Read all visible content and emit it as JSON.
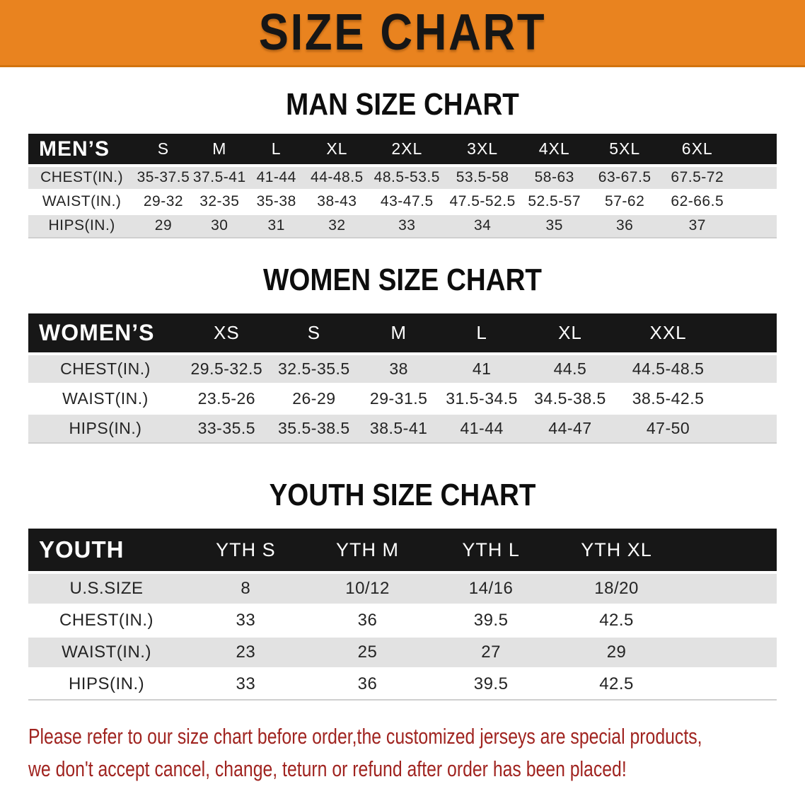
{
  "banner": {
    "title": "SIZE CHART",
    "bg_color": "#E9831F",
    "text_color": "#161616"
  },
  "sections": [
    {
      "heading": "MAN SIZE CHART",
      "table": {
        "group_label": "MEN’S",
        "columns": [
          "S",
          "M",
          "L",
          "XL",
          "2XL",
          "3XL",
          "4XL",
          "5XL",
          "6XL"
        ],
        "rows": [
          {
            "label": "CHEST(IN.)",
            "values": [
              "35-37.5",
              "37.5-41",
              "41-44",
              "44-48.5",
              "48.5-53.5",
              "53.5-58",
              "58-63",
              "63-67.5",
              "67.5-72"
            ]
          },
          {
            "label": "WAIST(IN.)",
            "values": [
              "29-32",
              "32-35",
              "35-38",
              "38-43",
              "43-47.5",
              "47.5-52.5",
              "52.5-57",
              "57-62",
              "62-66.5"
            ]
          },
          {
            "label": "HIPS(IN.)",
            "values": [
              "29",
              "30",
              "31",
              "32",
              "33",
              "34",
              "35",
              "36",
              "37"
            ]
          }
        ]
      }
    },
    {
      "heading": "WOMEN SIZE CHART",
      "table": {
        "group_label": "WOMEN’S",
        "columns": [
          "XS",
          "S",
          "M",
          "L",
          "XL",
          "XXL"
        ],
        "rows": [
          {
            "label": "CHEST(IN.)",
            "values": [
              "29.5-32.5",
              "32.5-35.5",
              "38",
              "41",
              "44.5",
              "44.5-48.5"
            ]
          },
          {
            "label": "WAIST(IN.)",
            "values": [
              "23.5-26",
              "26-29",
              "29-31.5",
              "31.5-34.5",
              "34.5-38.5",
              "38.5-42.5"
            ]
          },
          {
            "label": "HIPS(IN.)",
            "values": [
              "33-35.5",
              "35.5-38.5",
              "38.5-41",
              "41-44",
              "44-47",
              "47-50"
            ]
          }
        ]
      }
    },
    {
      "heading": "YOUTH SIZE CHART",
      "table": {
        "group_label": "YOUTH",
        "columns": [
          "YTH S",
          "YTH M",
          "YTH L",
          "YTH XL"
        ],
        "rows": [
          {
            "label": "U.S.SIZE",
            "values": [
              "8",
              "10/12",
              "14/16",
              "18/20"
            ]
          },
          {
            "label": "CHEST(IN.)",
            "values": [
              "33",
              "36",
              "39.5",
              "42.5"
            ]
          },
          {
            "label": "WAIST(IN.)",
            "values": [
              "23",
              "25",
              "27",
              "29"
            ]
          },
          {
            "label": "HIPS(IN.)",
            "values": [
              "33",
              "36",
              "39.5",
              "42.5"
            ]
          }
        ]
      }
    }
  ],
  "footer": {
    "line1": "Please refer to our size chart before order,the customized jerseys are special products,",
    "line2": "we don't accept cancel, change, teturn or refund after order has been placed!",
    "text_color": "#A02420"
  },
  "colors": {
    "banner_orange": "#E9831F",
    "header_bar_black": "#171717",
    "stripe_gray": "#E2E2E2",
    "notice_red": "#A02420"
  }
}
